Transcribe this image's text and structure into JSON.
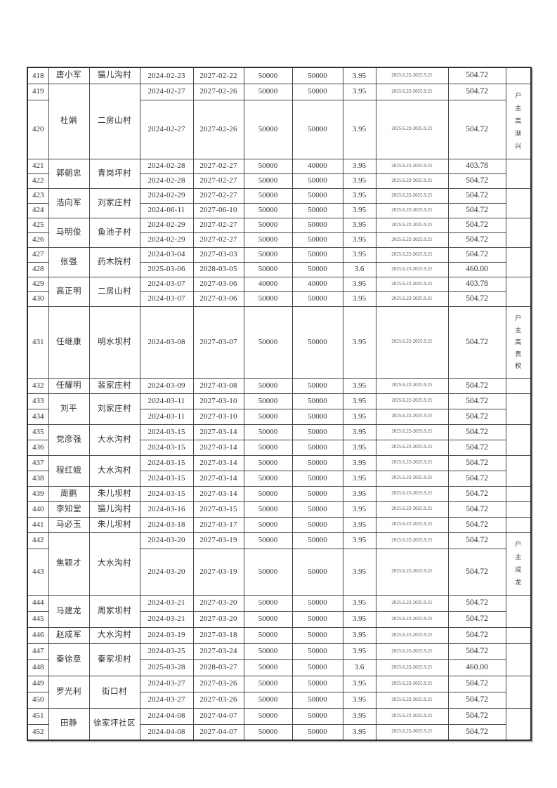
{
  "style": {
    "ink": "#303030",
    "grid_line": "#474747",
    "outer_border": "#2e2e2e",
    "paper": "#ffffff"
  },
  "document": {
    "groups": [
      {
        "name": "唐小军",
        "village": "猫儿沟村",
        "note": "",
        "rows": [
          {
            "no": "418",
            "start": "2024-02-23",
            "end": "2027-02-22",
            "amount": "50000",
            "balance": "50000",
            "rate": "3.95",
            "period": "2025.6.22-2025.9.21",
            "interest": "504.72",
            "h": 23
          }
        ]
      },
      {
        "name": "杜娟",
        "village": "二房山村",
        "note": "户主高渐兴",
        "rows": [
          {
            "no": "419",
            "start": "2024-02-27",
            "end": "2027-02-26",
            "amount": "50000",
            "balance": "50000",
            "rate": "3.95",
            "period": "2025.6.22-2025.9.21",
            "interest": "504.72",
            "h": 23
          },
          {
            "no": "420",
            "start": "2024-02-27",
            "end": "2027-02-26",
            "amount": "50000",
            "balance": "50000",
            "rate": "3.95",
            "period": "2025.6.22-2025.9.21",
            "interest": "504.72",
            "h": 84
          }
        ]
      },
      {
        "name": "郭朝忠",
        "village": "青岗坪村",
        "note": "",
        "rows": [
          {
            "no": "421",
            "start": "2024-02-28",
            "end": "2027-02-27",
            "amount": "50000",
            "balance": "40000",
            "rate": "3.95",
            "period": "2025.6.22-2025.9.21",
            "interest": "403.78",
            "h": 21
          },
          {
            "no": "422",
            "start": "2024-02-28",
            "end": "2027-02-27",
            "amount": "50000",
            "balance": "50000",
            "rate": "3.95",
            "period": "2025.6.22-2025.9.21",
            "interest": "504.72",
            "h": 21
          }
        ]
      },
      {
        "name": "浩向军",
        "village": "刘家庄村",
        "note": "",
        "rows": [
          {
            "no": "423",
            "start": "2024-02-29",
            "end": "2027-02-27",
            "amount": "50000",
            "balance": "50000",
            "rate": "3.95",
            "period": "2025.6.22-2025.9.21",
            "interest": "504.72",
            "h": 21
          },
          {
            "no": "424",
            "start": "2024-06-11",
            "end": "2027-06-10",
            "amount": "50000",
            "balance": "50000",
            "rate": "3.95",
            "period": "2025.6.22-2025.9.21",
            "interest": "504.72",
            "h": 21
          }
        ]
      },
      {
        "name": "马明俊",
        "village": "鱼池子村",
        "note": "",
        "rows": [
          {
            "no": "425",
            "start": "2024-02-29",
            "end": "2027-02-27",
            "amount": "50000",
            "balance": "50000",
            "rate": "3.95",
            "period": "2025.6.22-2025.9.21",
            "interest": "504.72",
            "h": 21
          },
          {
            "no": "426",
            "start": "2024-02-29",
            "end": "2027-02-27",
            "amount": "50000",
            "balance": "50000",
            "rate": "3.95",
            "period": "2025.6.22-2025.9.21",
            "interest": "504.72",
            "h": 21
          }
        ]
      },
      {
        "name": "张强",
        "village": "药木院村",
        "note": "",
        "rows": [
          {
            "no": "427",
            "start": "2024-03-04",
            "end": "2027-03-03",
            "amount": "50000",
            "balance": "50000",
            "rate": "3.95",
            "period": "2025.6.22-2025.9.21",
            "interest": "504.72",
            "h": 21
          },
          {
            "no": "428",
            "start": "2025-03-06",
            "end": "2028-03-05",
            "amount": "50000",
            "balance": "50000",
            "rate": "3.6",
            "period": "2025.6.22-2025.9.21",
            "interest": "460.00",
            "h": 21
          }
        ]
      },
      {
        "name": "高正明",
        "village": "二房山村",
        "note": "",
        "rows": [
          {
            "no": "429",
            "start": "2024-03-07",
            "end": "2027-03-06",
            "amount": "40000",
            "balance": "40000",
            "rate": "3.95",
            "period": "2025.6.22-2025.9.21",
            "interest": "403.78",
            "h": 21
          },
          {
            "no": "430",
            "start": "2024-03-07",
            "end": "2027-03-06",
            "amount": "50000",
            "balance": "50000",
            "rate": "3.95",
            "period": "2025.6.22-2025.9.21",
            "interest": "504.72",
            "h": 21
          }
        ]
      },
      {
        "name": "任继康",
        "village": "明水坝村",
        "note": "户主高贵权",
        "rows": [
          {
            "no": "431",
            "start": "2024-03-08",
            "end": "2027-03-07",
            "amount": "50000",
            "balance": "50000",
            "rate": "3.95",
            "period": "2025.6.22-2025.9.21",
            "interest": "504.72",
            "h": 102
          }
        ]
      },
      {
        "name": "任耀明",
        "village": "裴家庄村",
        "note": "",
        "rows": [
          {
            "no": "432",
            "start": "2024-03-09",
            "end": "2027-03-08",
            "amount": "50000",
            "balance": "50000",
            "rate": "3.95",
            "period": "2025.6.22-2025.9.21",
            "interest": "504.72",
            "h": 22
          }
        ]
      },
      {
        "name": "刘平",
        "village": "刘家庄村",
        "note": "",
        "rows": [
          {
            "no": "433",
            "start": "2024-03-11",
            "end": "2027-03-10",
            "amount": "50000",
            "balance": "50000",
            "rate": "3.95",
            "period": "2025.6.22-2025.9.21",
            "interest": "504.72",
            "h": 22
          },
          {
            "no": "434",
            "start": "2024-03-11",
            "end": "2027-03-10",
            "amount": "50000",
            "balance": "50000",
            "rate": "3.95",
            "period": "2025.6.22-2025.9.21",
            "interest": "504.72",
            "h": 22
          }
        ]
      },
      {
        "name": "党彦强",
        "village": "大水沟村",
        "note": "",
        "rows": [
          {
            "no": "435",
            "start": "2024-03-15",
            "end": "2027-03-14",
            "amount": "50000",
            "balance": "50000",
            "rate": "3.95",
            "period": "2025.6.22-2025.9.21",
            "interest": "504.72",
            "h": 22
          },
          {
            "no": "436",
            "start": "2024-03-15",
            "end": "2027-03-14",
            "amount": "50000",
            "balance": "50000",
            "rate": "3.95",
            "period": "2025.6.22-2025.9.21",
            "interest": "504.72",
            "h": 22
          }
        ]
      },
      {
        "name": "程红娥",
        "village": "大水沟村",
        "note": "",
        "rows": [
          {
            "no": "437",
            "start": "2024-03-15",
            "end": "2027-03-14",
            "amount": "50000",
            "balance": "50000",
            "rate": "3.95",
            "period": "2025.6.22-2025.9.21",
            "interest": "504.72",
            "h": 22
          },
          {
            "no": "438",
            "start": "2024-03-15",
            "end": "2027-03-14",
            "amount": "50000",
            "balance": "50000",
            "rate": "3.95",
            "period": "2025.6.22-2025.9.21",
            "interest": "504.72",
            "h": 22
          }
        ]
      },
      {
        "name": "周鹏",
        "village": "朱儿坝村",
        "note": "",
        "rows": [
          {
            "no": "439",
            "start": "2024-03-15",
            "end": "2027-03-14",
            "amount": "50000",
            "balance": "50000",
            "rate": "3.95",
            "period": "2025.6.22-2025.9.21",
            "interest": "504.72",
            "h": 22
          }
        ]
      },
      {
        "name": "李知堂",
        "village": "猫儿沟村",
        "note": "",
        "rows": [
          {
            "no": "440",
            "start": "2024-03-16",
            "end": "2027-03-15",
            "amount": "50000",
            "balance": "50000",
            "rate": "3.95",
            "period": "2025.6.22-2025.9.21",
            "interest": "504.72",
            "h": 22
          }
        ]
      },
      {
        "name": "马必玉",
        "village": "朱儿坝村",
        "note": "",
        "rows": [
          {
            "no": "441",
            "start": "2024-03-18",
            "end": "2027-03-17",
            "amount": "50000",
            "balance": "50000",
            "rate": "3.95",
            "period": "2025.6.22-2025.9.21",
            "interest": "504.72",
            "h": 22
          }
        ]
      },
      {
        "name": "焦颖才",
        "village": "大水沟村",
        "note": "户主成龙",
        "rows": [
          {
            "no": "442",
            "start": "2024-03-20",
            "end": "2027-03-19",
            "amount": "50000",
            "balance": "50000",
            "rate": "3.95",
            "period": "2025.6.22-2025.9.21",
            "interest": "504.72",
            "h": 23
          },
          {
            "no": "443",
            "start": "2024-03-20",
            "end": "2027-03-19",
            "amount": "50000",
            "balance": "50000",
            "rate": "3.95",
            "period": "2025.6.22-2025.9.21",
            "interest": "504.72",
            "h": 66
          }
        ]
      },
      {
        "name": "马建龙",
        "village": "周家坝村",
        "note": "",
        "rows": [
          {
            "no": "444",
            "start": "2024-03-21",
            "end": "2027-03-20",
            "amount": "50000",
            "balance": "50000",
            "rate": "3.95",
            "period": "2025.6.22-2025.9.21",
            "interest": "504.72",
            "h": 23
          },
          {
            "no": "445",
            "start": "2024-03-21",
            "end": "2027-03-20",
            "amount": "50000",
            "balance": "50000",
            "rate": "3.95",
            "period": "2025.6.22-2025.9.21",
            "interest": "504.72",
            "h": 23
          }
        ]
      },
      {
        "name": "赵成军",
        "village": "大水沟村",
        "note": "",
        "rows": [
          {
            "no": "446",
            "start": "2024-03-19",
            "end": "2027-03-18",
            "amount": "50000",
            "balance": "50000",
            "rate": "3.95",
            "period": "2025.6.22-2025.9.21",
            "interest": "504.72",
            "h": 23
          }
        ]
      },
      {
        "name": "秦徐章",
        "village": "秦家坝村",
        "note": "",
        "rows": [
          {
            "no": "447",
            "start": "2024-03-25",
            "end": "2027-03-24",
            "amount": "50000",
            "balance": "50000",
            "rate": "3.95",
            "period": "2025.6.22-2025.9.21",
            "interest": "504.72",
            "h": 23
          },
          {
            "no": "448",
            "start": "2025-03-28",
            "end": "2028-03-27",
            "amount": "50000",
            "balance": "50000",
            "rate": "3.6",
            "period": "2025.6.22-2025.9.21",
            "interest": "460.00",
            "h": 23
          }
        ]
      },
      {
        "name": "罗光利",
        "village": "街口村",
        "note": "",
        "rows": [
          {
            "no": "449",
            "start": "2024-03-27",
            "end": "2027-03-26",
            "amount": "50000",
            "balance": "50000",
            "rate": "3.95",
            "period": "2025.6.22-2025.9.21",
            "interest": "504.72",
            "h": 23
          },
          {
            "no": "450",
            "start": "2024-03-27",
            "end": "2027-03-26",
            "amount": "50000",
            "balance": "50000",
            "rate": "3.95",
            "period": "2025.6.22-2025.9.21",
            "interest": "504.72",
            "h": 23
          }
        ]
      },
      {
        "name": "田静",
        "village": "徐家坪社区",
        "note": "",
        "rows": [
          {
            "no": "451",
            "start": "2024-04-08",
            "end": "2027-04-07",
            "amount": "50000",
            "balance": "50000",
            "rate": "3.95",
            "period": "2025.6.22-2025.9.21",
            "interest": "504.72",
            "h": 23
          },
          {
            "no": "452",
            "start": "2024-04-08",
            "end": "2027-04-07",
            "amount": "50000",
            "balance": "50000",
            "rate": "3.95",
            "period": "2025.6.22-2025.9.21",
            "interest": "504.72",
            "h": 23
          }
        ]
      }
    ]
  }
}
